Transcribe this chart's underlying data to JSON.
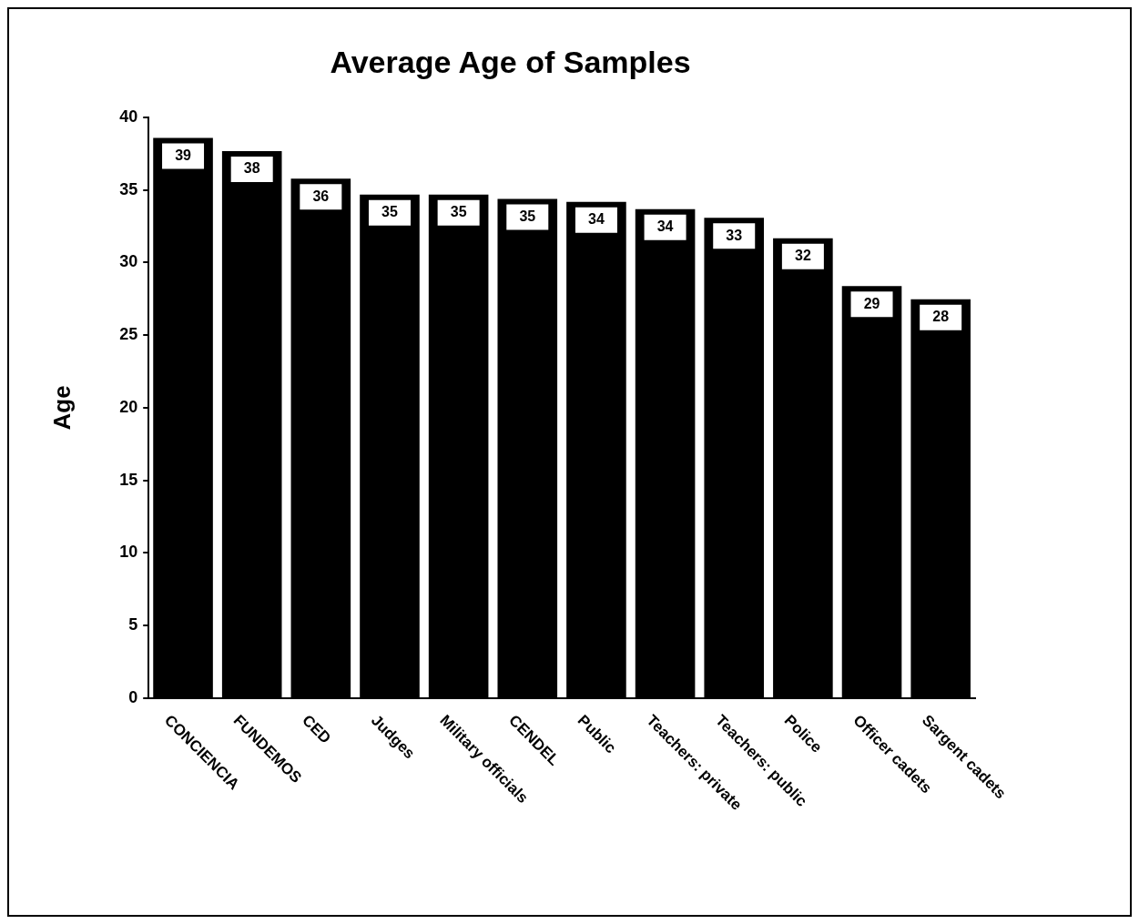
{
  "chart_data": {
    "type": "bar",
    "title": "Average Age of Samples",
    "ylabel": "Age",
    "categories": [
      "CONCIENCIA",
      "FUNDEMOS",
      "CED",
      "Judges",
      "Military officials",
      "CENDEL",
      "Public",
      "Teachers: private",
      "Teachers: public",
      "Police",
      "Officer cadets",
      "Sargent cadets"
    ],
    "values": [
      38.7,
      37.8,
      35.9,
      34.8,
      34.8,
      34.5,
      34.3,
      33.8,
      33.2,
      31.8,
      28.5,
      27.6
    ],
    "value_labels": [
      "39",
      "38",
      "36",
      "35",
      "35",
      "35",
      "34",
      "34",
      "33",
      "32",
      "29",
      "28"
    ],
    "color": "#000000",
    "ylim": [
      0,
      40
    ],
    "yticks": [
      0,
      5,
      10,
      15,
      20,
      25,
      30,
      35,
      40
    ],
    "grid": false,
    "legend": false
  }
}
